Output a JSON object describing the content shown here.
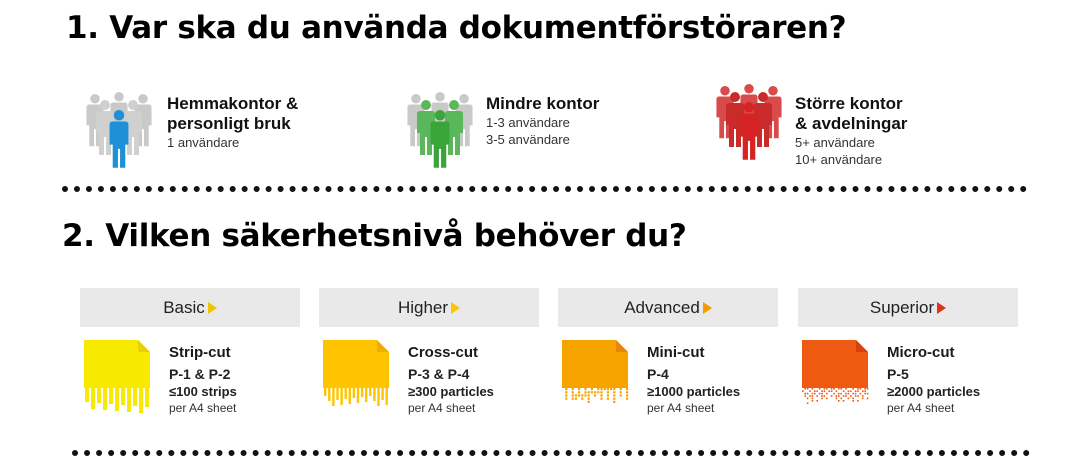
{
  "heading1": "1. Var ska du använda dokumentförstöraren?",
  "heading2": "2. Vilken säkerhetsnivå behöver du?",
  "user_groups": [
    {
      "title_lines": [
        "Hemmakontor &",
        "personligt bruk"
      ],
      "users": [
        "1 användare"
      ],
      "icon": "person-group-icon",
      "color": "#1e90d8"
    },
    {
      "title_lines": [
        "Mindre kontor"
      ],
      "users": [
        "1-3 användare",
        "3-5 användare"
      ],
      "icon": "person-group-icon",
      "color": "#3aa53a"
    },
    {
      "title_lines": [
        "Större kontor",
        "& avdelningar"
      ],
      "users": [
        "5+ användare",
        "10+ användare"
      ],
      "icon": "person-group-icon",
      "color": "#d62323"
    }
  ],
  "security_levels": [
    {
      "name": "Basic",
      "cut": "Strip-cut",
      "levels": "P-1 & P-2",
      "amount": "≤100 strips",
      "unit": "per A4 sheet",
      "color": "#f7ea00",
      "arrow_color": "#f0c300",
      "icon": "strip-cut-document-icon"
    },
    {
      "name": "Higher",
      "cut": "Cross-cut",
      "levels": "P-3 & P-4",
      "amount": "≥300 particles",
      "unit": "per A4 sheet",
      "color": "#ffc400",
      "arrow_color": "#ffc400",
      "icon": "cross-cut-document-icon"
    },
    {
      "name": "Advanced",
      "cut": "Mini-cut",
      "levels": "P-4",
      "amount": "≥1000 particles",
      "unit": "per A4 sheet",
      "color": "#f7a300",
      "arrow_color": "#f59a00",
      "icon": "mini-cut-document-icon"
    },
    {
      "name": "Superior",
      "cut": "Micro-cut",
      "levels": "P-5",
      "amount": "≥2000 particles",
      "unit": "per A4 sheet",
      "color": "#ee5a12",
      "arrow_color": "#e0341a",
      "icon": "micro-cut-document-icon"
    }
  ]
}
